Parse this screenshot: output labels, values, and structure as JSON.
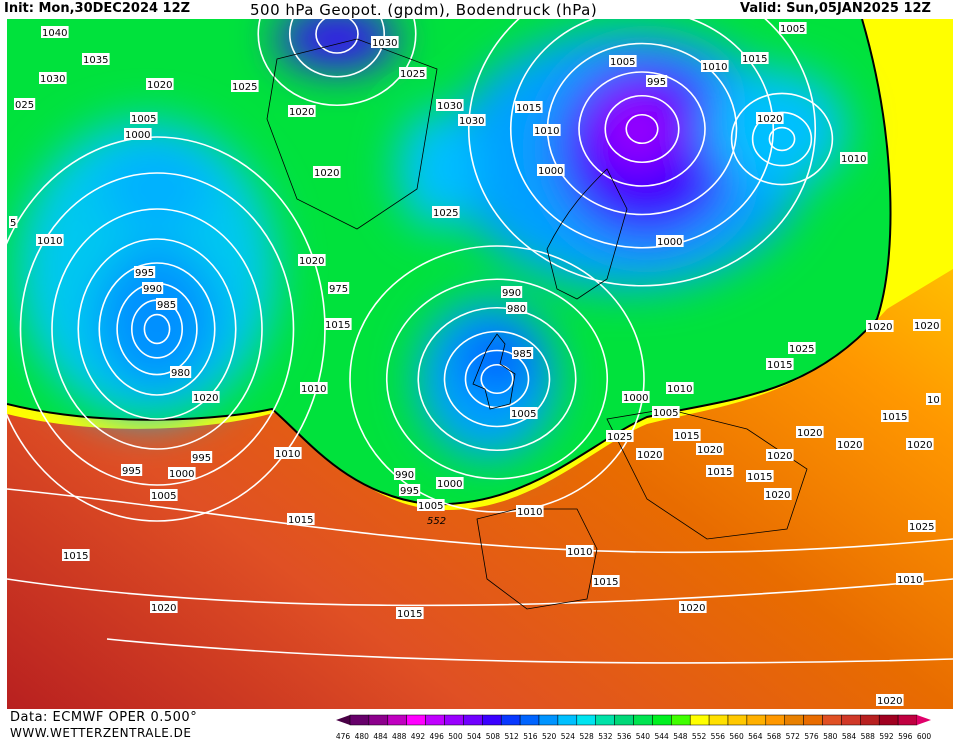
{
  "header": {
    "init": "Init: Mon,30DEC2024 12Z",
    "title": "500 hPa Geopot. (gpdm), Bodendruck (hPa)",
    "valid": "Valid: Sun,05JAN2025 12Z"
  },
  "footer": {
    "data": "Data: ECMWF OPER 0.500°",
    "site": "WWW.WETTERZENTRALE.DE"
  },
  "legend": {
    "labels": [
      "476",
      "480",
      "484",
      "488",
      "492",
      "496",
      "500",
      "504",
      "508",
      "512",
      "516",
      "520",
      "524",
      "528",
      "532",
      "536",
      "540",
      "544",
      "548",
      "552",
      "556",
      "560",
      "564",
      "568",
      "572",
      "576",
      "580",
      "584",
      "588",
      "592",
      "596",
      "600"
    ],
    "colors": [
      "#4a0046",
      "#66006a",
      "#8c008c",
      "#c000c0",
      "#ff00ff",
      "#c000ff",
      "#9a00ff",
      "#7000ff",
      "#3a00ff",
      "#0838ff",
      "#0064ff",
      "#0094ff",
      "#00c0ff",
      "#00e4f0",
      "#00e2a8",
      "#00d878",
      "#00e450",
      "#00f020",
      "#40ff00",
      "#ffff00",
      "#ffe000",
      "#ffc800",
      "#ffb000",
      "#ff9800",
      "#e88000",
      "#e86c00",
      "#e05024",
      "#d03828",
      "#b82020",
      "#a00020",
      "#c00040",
      "#e0006a"
    ]
  },
  "map": {
    "contour_552_label": "552",
    "pressure_labels": [
      "1040",
      "1035",
      "1030",
      "025",
      "1020",
      "1025",
      "1020",
      "1030",
      "1025",
      "1030",
      "1005",
      "1000",
      "1020",
      "1030",
      "1015",
      "1010",
      "1005",
      "995",
      "1015",
      "1010",
      "1005",
      "1010",
      "1020",
      "1000",
      "5",
      "1010",
      "1025",
      "1000",
      "995",
      "990",
      "985",
      "1020",
      "975",
      "980",
      "1020",
      "1015",
      "995",
      "985",
      "990",
      "980",
      "1010",
      "1000",
      "1005",
      "1010",
      "1015",
      "1020",
      "1025",
      "1020",
      "1010",
      "1005",
      "1015",
      "995",
      "1000",
      "552",
      "1010",
      "1005",
      "990",
      "995",
      "1000",
      "1005",
      "1010",
      "1015",
      "1015",
      "1020",
      "1020",
      "1020",
      "1025",
      "1010",
      "1015",
      "1020",
      "1015",
      "1020",
      "1020",
      "1015",
      "1025",
      "1020",
      "1015",
      "1020",
      "1020",
      "1020",
      "10",
      "1015"
    ]
  }
}
